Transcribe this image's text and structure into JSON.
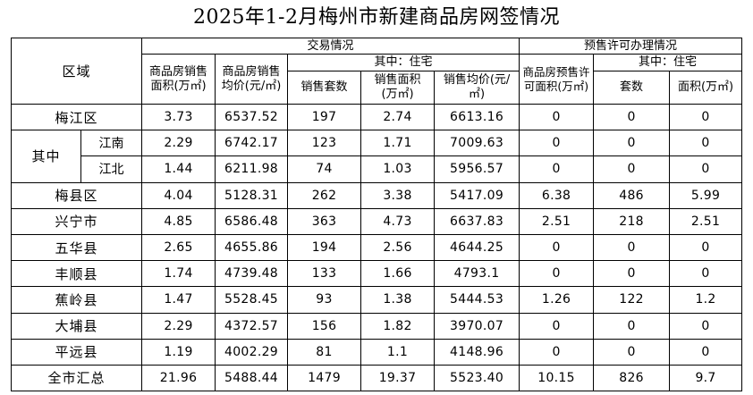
{
  "title": "2025年1-2月梅州市新建商品房网签情况",
  "headers": {
    "region": "区域",
    "trade_group": "交易情况",
    "presale_group": "预售许可办理情况",
    "trade_sales_area": "商品房销售面积(万㎡)",
    "trade_avg_price": "商品房销售均价(元/㎡)",
    "trade_residential_group": "其中：住宅",
    "res_units": "销售套数",
    "res_area": "销售面积(万㎡)",
    "res_avg_price": "销售均价(元/㎡)",
    "presale_area": "商品房预售许可面积(万㎡)",
    "presale_res_group": "其中：住宅",
    "presale_res_units": "套数",
    "presale_res_area": "面积(万㎡)"
  },
  "rows": [
    {
      "region": "梅江区",
      "v": [
        "3.73",
        "6537.52",
        "197",
        "2.74",
        "6613.16",
        "0",
        "0",
        "0"
      ]
    },
    {
      "parent": "其中",
      "region": "江南",
      "v": [
        "2.29",
        "6742.17",
        "123",
        "1.71",
        "7009.63",
        "0",
        "0",
        "0"
      ]
    },
    {
      "region": "江北",
      "v": [
        "1.44",
        "6211.98",
        "74",
        "1.03",
        "5956.57",
        "0",
        "0",
        "0"
      ]
    },
    {
      "region": "梅县区",
      "v": [
        "4.04",
        "5128.31",
        "262",
        "3.38",
        "5417.09",
        "6.38",
        "486",
        "5.99"
      ]
    },
    {
      "region": "兴宁市",
      "v": [
        "4.85",
        "6586.48",
        "363",
        "4.73",
        "6637.83",
        "2.51",
        "218",
        "2.51"
      ]
    },
    {
      "region": "五华县",
      "v": [
        "2.65",
        "4655.86",
        "194",
        "2.56",
        "4644.25",
        "0",
        "0",
        "0"
      ]
    },
    {
      "region": "丰顺县",
      "v": [
        "1.74",
        "4739.48",
        "133",
        "1.66",
        "4793.1",
        "0",
        "0",
        "0"
      ]
    },
    {
      "region": "蕉岭县",
      "v": [
        "1.47",
        "5528.45",
        "93",
        "1.38",
        "5444.53",
        "1.26",
        "122",
        "1.2"
      ]
    },
    {
      "region": "大埔县",
      "v": [
        "2.29",
        "4372.57",
        "156",
        "1.82",
        "3970.07",
        "0",
        "0",
        "0"
      ]
    },
    {
      "region": "平远县",
      "v": [
        "1.19",
        "4002.29",
        "81",
        "1.1",
        "4148.96",
        "0",
        "0",
        "0"
      ]
    },
    {
      "region": "全市汇总",
      "v": [
        "21.96",
        "5488.44",
        "1479",
        "19.37",
        "5523.40",
        "10.15",
        "826",
        "9.7"
      ]
    }
  ]
}
